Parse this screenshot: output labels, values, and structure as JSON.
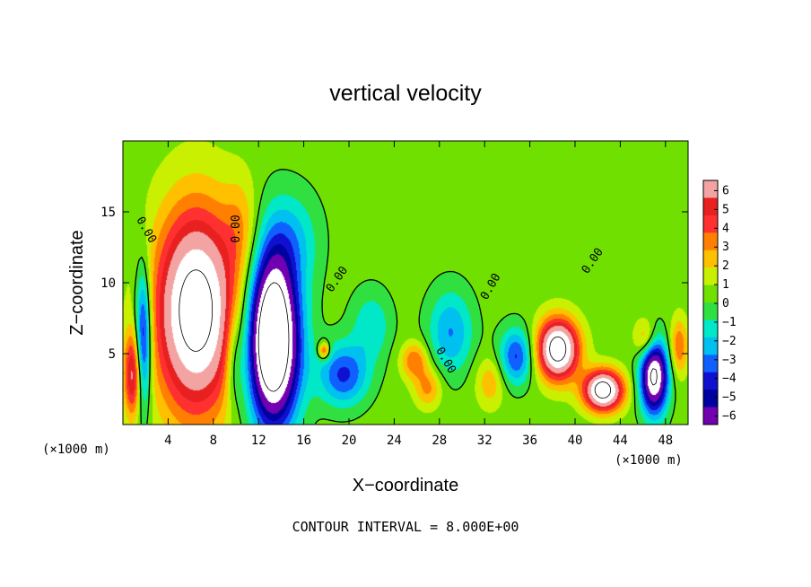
{
  "chart_data": {
    "type": "heatmap",
    "title": "vertical velocity",
    "xlabel": "X−coordinate",
    "ylabel": "Z−coordinate",
    "x_unit": "(×1000 m)",
    "z_unit": "(×1000 m)",
    "xlim": [
      0,
      50
    ],
    "ylim": [
      0,
      20
    ],
    "x_ticks": [
      4,
      8,
      12,
      16,
      20,
      24,
      28,
      32,
      36,
      40,
      44,
      48
    ],
    "y_ticks": [
      5,
      10,
      15
    ],
    "x_tick_labels": [
      "4",
      "8",
      "12",
      "16",
      "20",
      "24",
      "28",
      "32",
      "36",
      "40",
      "44",
      "48"
    ],
    "y_tick_labels": [
      "5",
      "10",
      "15"
    ],
    "colorbar": {
      "levels": [
        6,
        5,
        4,
        3,
        2,
        1,
        0,
        -1,
        -2,
        -3,
        -4,
        -5,
        -6
      ],
      "labels": [
        "6",
        "5",
        "4",
        "3",
        "2",
        "1",
        "0",
        "−1",
        "−2",
        "−3",
        "−4",
        "−5",
        "−6"
      ],
      "colors": [
        "#f4a3a3",
        "#e82020",
        "#ff3030",
        "#ff8000",
        "#ffc000",
        "#c8f000",
        "#6fe000",
        "#30e040",
        "#00e8c8",
        "#00c0f0",
        "#1060ff",
        "#1010d0",
        "#0000a0",
        "#7000b0"
      ]
    },
    "contour_interval_note": "CONTOUR INTERVAL = 8.000E+00",
    "contour_labels": [
      {
        "text": "0.00",
        "x": 1.8,
        "z": 13.6,
        "rotate": 60
      },
      {
        "text": "0.00",
        "x": 10.3,
        "z": 13.8,
        "rotate": -90
      },
      {
        "text": "0.00",
        "x": 19.2,
        "z": 10.1,
        "rotate": -55
      },
      {
        "text": "0.00",
        "x": 28.3,
        "z": 4.4,
        "rotate": 60
      },
      {
        "text": "0.00",
        "x": 32.8,
        "z": 9.6,
        "rotate": -60
      },
      {
        "text": "0.00",
        "x": 41.8,
        "z": 11.4,
        "rotate": -55
      }
    ],
    "cells": [
      {
        "x": 6.5,
        "z": 8.0,
        "sx": 3.6,
        "sz": 7.0,
        "v": 9
      },
      {
        "x": 1.8,
        "z": 6.0,
        "sx": 0.7,
        "sz": 5.0,
        "v": -6
      },
      {
        "x": 0.9,
        "z": 3.5,
        "sx": 0.8,
        "sz": 3.0,
        "v": 5
      },
      {
        "x": 13.3,
        "z": 5.6,
        "sx": 2.4,
        "sz": 5.6,
        "v": -9
      },
      {
        "x": 13.3,
        "z": 7.0,
        "sx": 1.8,
        "sz": 6.0,
        "v": -4
      },
      {
        "x": 19.5,
        "z": 3.5,
        "sx": 2.2,
        "sz": 2.2,
        "v": -4
      },
      {
        "x": 17.8,
        "z": 5.2,
        "sx": 0.5,
        "sz": 0.6,
        "v": 4
      },
      {
        "x": 29.0,
        "z": 6.5,
        "sx": 2.0,
        "sz": 3.0,
        "v": -3
      },
      {
        "x": 25.8,
        "z": 4.5,
        "sx": 1.2,
        "sz": 1.3,
        "v": 3
      },
      {
        "x": 27.0,
        "z": 2.6,
        "sx": 1.2,
        "sz": 1.4,
        "v": 2.5
      },
      {
        "x": 34.8,
        "z": 4.8,
        "sx": 1.5,
        "sz": 2.0,
        "v": -4
      },
      {
        "x": 32.5,
        "z": 3.0,
        "sx": 1.3,
        "sz": 1.8,
        "v": 2
      },
      {
        "x": 38.5,
        "z": 5.3,
        "sx": 1.8,
        "sz": 2.1,
        "v": 9
      },
      {
        "x": 42.5,
        "z": 2.4,
        "sx": 1.7,
        "sz": 1.4,
        "v": 9
      },
      {
        "x": 47.0,
        "z": 3.4,
        "sx": 1.2,
        "sz": 2.6,
        "v": -9
      },
      {
        "x": 46.3,
        "z": 6.0,
        "sx": 1.0,
        "sz": 1.4,
        "v": 3
      },
      {
        "x": 9.8,
        "z": 4.5,
        "sx": 0.8,
        "sz": 3.5,
        "v": -2
      },
      {
        "x": 15.0,
        "z": 13.0,
        "sx": 2.5,
        "sz": 3.5,
        "v": -2
      },
      {
        "x": 10.5,
        "z": 14.0,
        "sx": 1.5,
        "sz": 3.5,
        "v": 1.5
      },
      {
        "x": 22.0,
        "z": 7.0,
        "sx": 1.8,
        "sz": 2.5,
        "v": -2
      },
      {
        "x": 49.2,
        "z": 5.5,
        "sx": 0.8,
        "sz": 2.0,
        "v": 3
      }
    ]
  }
}
